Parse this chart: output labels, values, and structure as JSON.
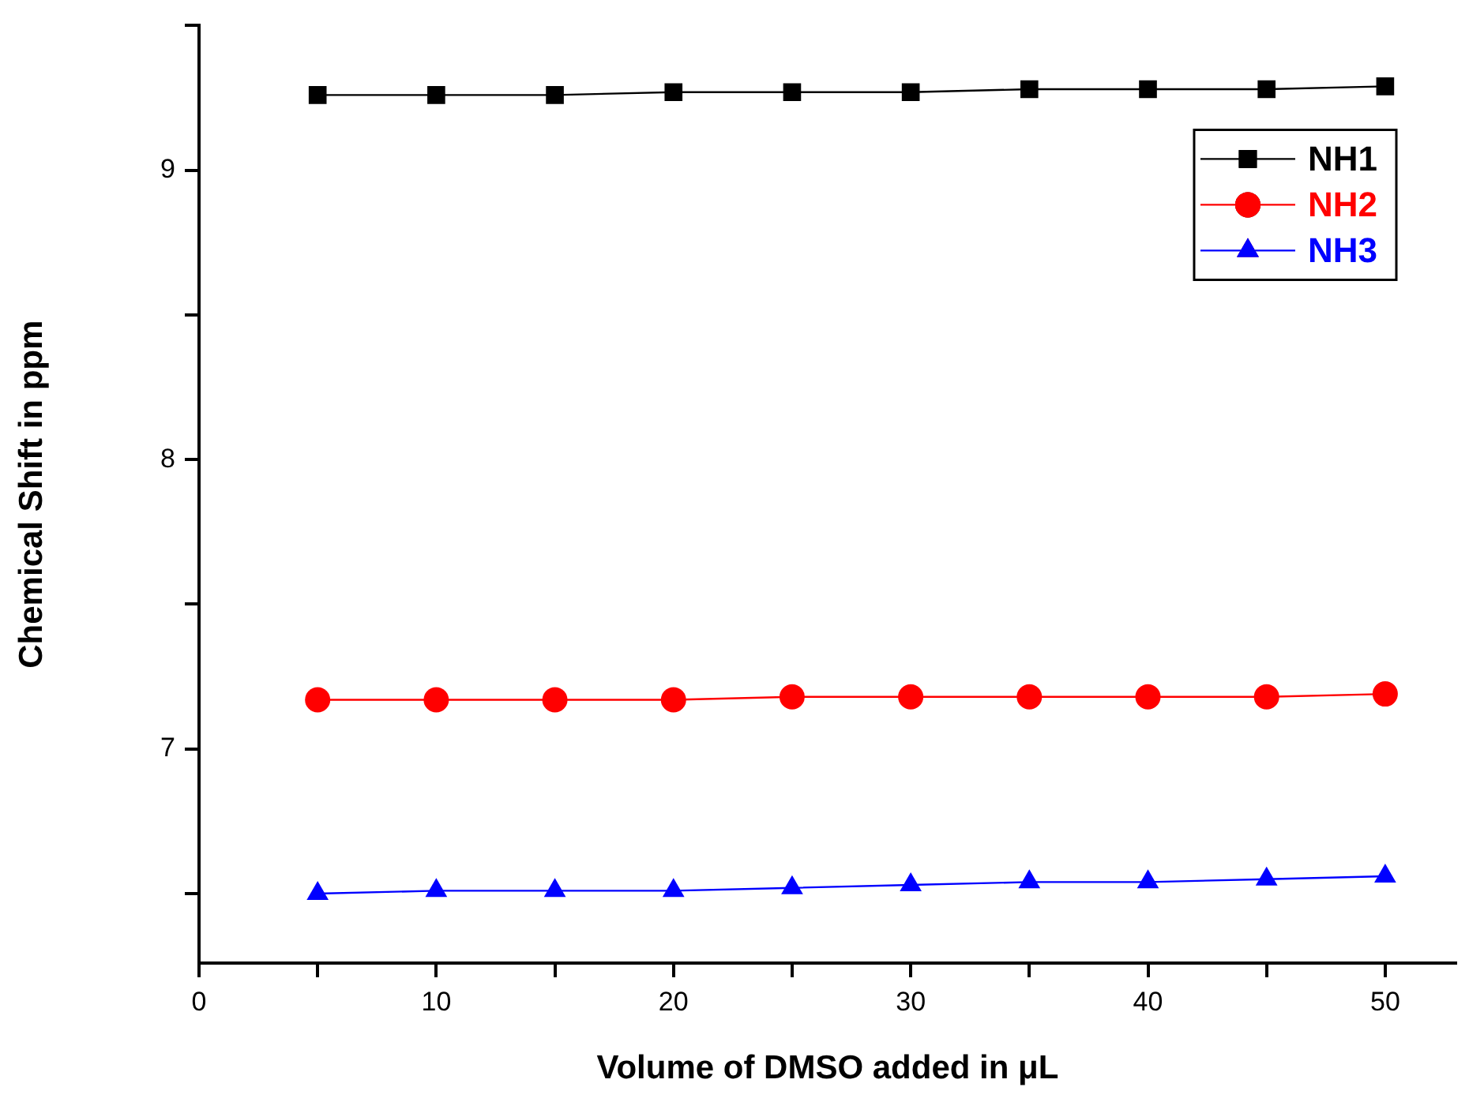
{
  "chart_data": {
    "type": "line",
    "xlabel": "Volume of DMSO added in μL",
    "ylabel": "Chemical Shift in ppm",
    "x": [
      5,
      10,
      15,
      20,
      25,
      30,
      35,
      40,
      45,
      50
    ],
    "series": [
      {
        "name": "NH1",
        "color": "#000000",
        "marker": "square",
        "values": [
          9.26,
          9.26,
          9.26,
          9.27,
          9.27,
          9.27,
          9.28,
          9.28,
          9.28,
          9.29
        ]
      },
      {
        "name": "NH2",
        "color": "#ff0000",
        "marker": "circle",
        "values": [
          7.17,
          7.17,
          7.17,
          7.17,
          7.18,
          7.18,
          7.18,
          7.18,
          7.18,
          7.19
        ]
      },
      {
        "name": "NH3",
        "color": "#0000ff",
        "marker": "triangle",
        "values": [
          6.5,
          6.51,
          6.51,
          6.51,
          6.52,
          6.53,
          6.54,
          6.54,
          6.55,
          6.56
        ]
      }
    ],
    "xlim": [
      0,
      53
    ],
    "xticks": [
      0,
      {
        "value": 5,
        "label": null
      },
      10,
      {
        "value": 15,
        "label": null
      },
      20,
      {
        "value": 25,
        "label": null
      },
      30,
      {
        "value": 35,
        "label": null
      },
      40,
      {
        "value": 45,
        "label": null
      },
      50
    ],
    "ylim": [
      6.26,
      9.5
    ],
    "yticks": [
      {
        "value": 6.5,
        "label": null
      },
      7,
      {
        "value": 7.5,
        "label": null
      },
      8,
      {
        "value": 8.5,
        "label": null
      },
      9,
      {
        "value": 9.5,
        "label": null
      }
    ],
    "grid": false,
    "legend": "top right",
    "line_style": "solid"
  }
}
